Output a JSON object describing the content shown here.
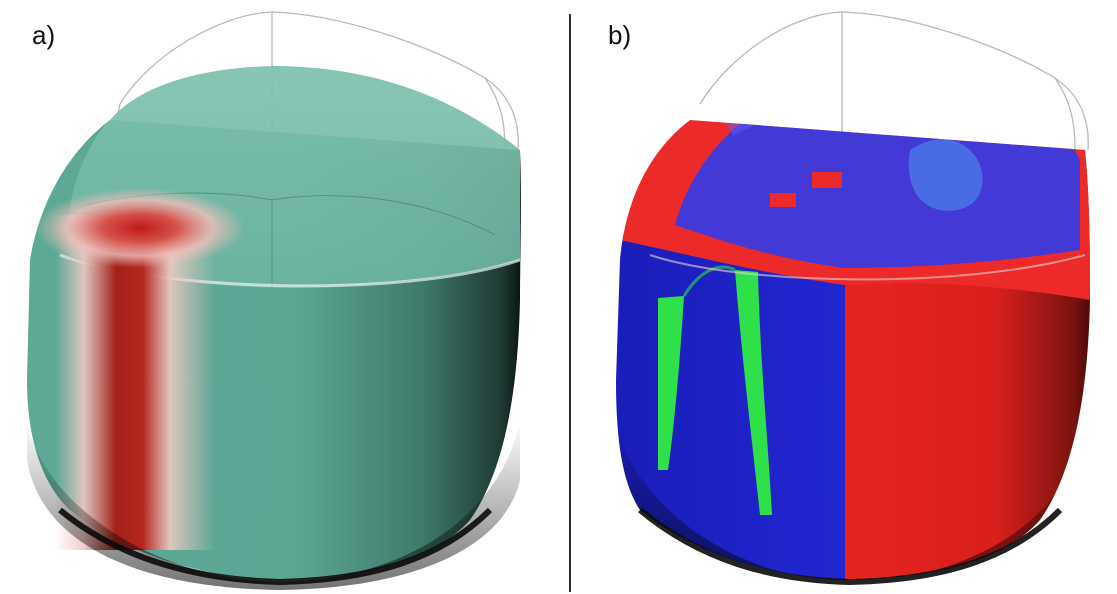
{
  "panels": [
    {
      "label": "a)"
    },
    {
      "label": "b)"
    }
  ],
  "colors": {
    "background": "#ffffff",
    "panel_a_base": "#68b3a1",
    "panel_a_highlight": "#b0261f",
    "panel_b_red": "#e8231f",
    "panel_b_blue": "#1c20c4",
    "panel_b_green": "#2fe04a",
    "outline": "#9a9a9a",
    "shadow": "#0a0a0a"
  }
}
